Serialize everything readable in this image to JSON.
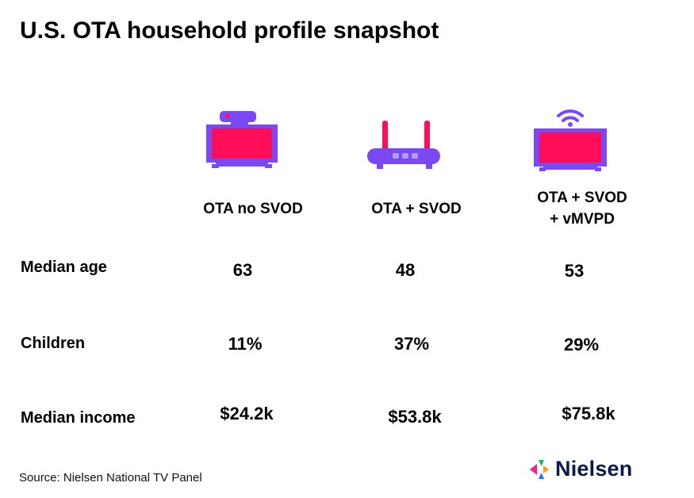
{
  "title": "U.S. OTA household profile snapshot",
  "chart_data": {
    "type": "table",
    "columns": [
      "OTA no SVOD",
      "OTA + SVOD",
      "OTA + SVOD\n+ vMVPD"
    ],
    "column_icons": [
      "tv-antenna-icon",
      "router-icon",
      "tv-wifi-icon"
    ],
    "rows": [
      {
        "label": "Median age",
        "values": [
          "63",
          "48",
          "53"
        ]
      },
      {
        "label": "Children",
        "values": [
          "11%",
          "37%",
          "29%"
        ]
      },
      {
        "label": "Median income",
        "values": [
          "$24.2k",
          "$53.8k",
          "$75.8k"
        ]
      }
    ]
  },
  "source": "Source: Nielsen National TV Panel",
  "logo": {
    "text": "Nielsen"
  },
  "colors": {
    "purple": "#7b49f4",
    "red": "#ff0d58",
    "navy": "#0b1946",
    "logo_pink": "#e8258f",
    "logo_green": "#1fb36b",
    "logo_orange": "#ff9b1a",
    "logo_blue": "#2f6bff"
  }
}
